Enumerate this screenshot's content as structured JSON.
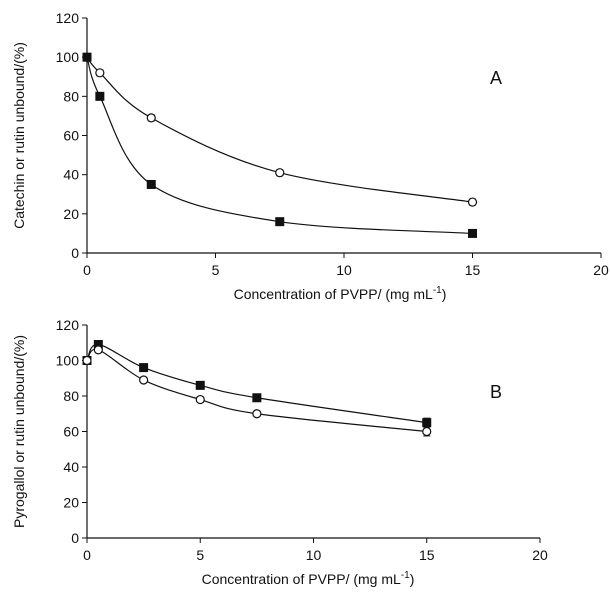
{
  "colors": {
    "axis": "#111111",
    "line": "#111111",
    "filled_marker": "#111111",
    "open_marker_fill": "#ffffff",
    "background": "#ffffff"
  },
  "chart_data": [
    {
      "type": "line",
      "panel_label": "A",
      "xlabel": "Concentration of PVPP/ (mg mL",
      "xlabel_sup": "-1",
      "xlabel_end": ")",
      "ylabel": "Catechin or rutin unbound/(%)",
      "xlim": [
        0,
        20
      ],
      "ylim": [
        0,
        120
      ],
      "x_ticks": [
        0,
        5,
        10,
        15,
        20
      ],
      "y_ticks": [
        0,
        20,
        40,
        60,
        80,
        100,
        120
      ],
      "grid": false,
      "series": [
        {
          "marker": "open-circle",
          "x": [
            0,
            0.5,
            2.5,
            7.5,
            15
          ],
          "y": [
            100,
            92,
            69,
            41,
            26
          ],
          "err": [
            1.5,
            1.5,
            1.5,
            1.5,
            1.5
          ]
        },
        {
          "marker": "filled-square",
          "x": [
            0,
            0.5,
            2.5,
            7.5,
            15
          ],
          "y": [
            100,
            80,
            35,
            16,
            10
          ],
          "err": [
            1.5,
            1.5,
            1.5,
            1.5,
            1.5
          ]
        }
      ]
    },
    {
      "type": "line",
      "panel_label": "B",
      "xlabel": "Concentration of  PVPP/ (mg mL",
      "xlabel_sup": "-1",
      "xlabel_end": ")",
      "ylabel": "Pyrogallol or rutin unbound/(%)",
      "xlim": [
        0,
        20
      ],
      "ylim": [
        0,
        120
      ],
      "x_ticks": [
        0,
        5,
        10,
        15,
        20
      ],
      "y_ticks": [
        0,
        20,
        40,
        60,
        80,
        100,
        120
      ],
      "grid": false,
      "series": [
        {
          "marker": "filled-square",
          "x": [
            0,
            0.5,
            2.5,
            5,
            7.5,
            15
          ],
          "y": [
            100,
            109,
            96,
            86,
            79,
            65
          ],
          "err": [
            1.5,
            1.5,
            1.5,
            1.5,
            1.5,
            2.5
          ]
        },
        {
          "marker": "open-circle",
          "x": [
            0,
            0.5,
            2.5,
            5,
            7.5,
            15
          ],
          "y": [
            100,
            106,
            89,
            78,
            70,
            60
          ],
          "err": [
            1.5,
            1.5,
            1.5,
            1.5,
            1.5,
            2.5
          ]
        }
      ]
    }
  ]
}
